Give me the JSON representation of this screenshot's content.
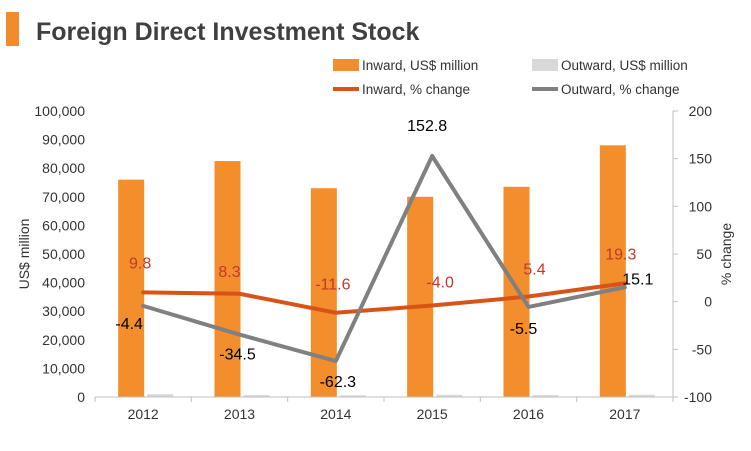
{
  "colors": {
    "accent": "#f08c2e",
    "inward_bar": "#f28e2b",
    "outward_bar": "#d9d9d9",
    "inward_line": "#d95319",
    "outward_line": "#808080",
    "inward_label": "#c0392b",
    "axis_text": "#333333",
    "title_text": "#404040"
  },
  "chart_data": {
    "type": "bar+line",
    "title": "Foreign Direct Investment Stock",
    "categories": [
      "2012",
      "2013",
      "2014",
      "2015",
      "2016",
      "2017"
    ],
    "ylabel": "US$ million",
    "y2label": "% change",
    "ylim": [
      0,
      100000
    ],
    "y2lim": [
      -100,
      200
    ],
    "yticks": [
      "0",
      "10,000",
      "20,000",
      "30,000",
      "40,000",
      "50,000",
      "60,000",
      "70,000",
      "80,000",
      "90,000",
      "100,000"
    ],
    "y2ticks": [
      "-100",
      "-50",
      "0",
      "50",
      "100",
      "150",
      "200"
    ],
    "bars": [
      {
        "name": "Inward, US$ million",
        "values": [
          76000,
          82500,
          73000,
          70000,
          73500,
          88000
        ]
      },
      {
        "name": "Outward, US$ million",
        "values": [
          1000,
          700,
          600,
          800,
          700,
          800
        ]
      }
    ],
    "lines": [
      {
        "name": "Inward, % change",
        "values": [
          9.8,
          8.3,
          -11.6,
          -4.0,
          5.4,
          19.3
        ],
        "labels": [
          "9.8",
          "8.3",
          "-11.6",
          "-4.0",
          "5.4",
          "19.3"
        ]
      },
      {
        "name": "Outward, % change",
        "values": [
          -4.4,
          -34.5,
          -62.3,
          152.8,
          -5.5,
          15.1
        ],
        "labels": [
          "-4.4",
          "-34.5",
          "-62.3",
          "152.8",
          "-5.5",
          "15.1"
        ]
      }
    ],
    "grid": false,
    "legend_position": "top"
  }
}
